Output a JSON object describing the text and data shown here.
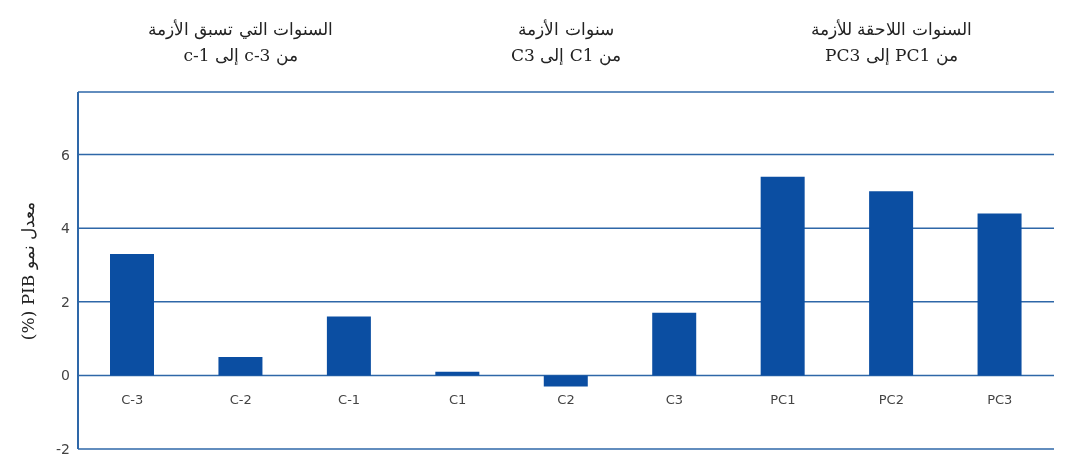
{
  "chart_data": {
    "type": "bar",
    "categories": [
      "C-3",
      "C-2",
      "C-1",
      "C1",
      "C2",
      "C3",
      "PC1",
      "PC2",
      "PC3"
    ],
    "values": [
      3.3,
      0.5,
      1.6,
      0.1,
      -0.3,
      1.7,
      5.4,
      5.0,
      4.4
    ],
    "color": "#0b4ea2",
    "ylabel": "معدل نمو PIB (%)",
    "ylim": [
      -2,
      7.7
    ],
    "yticks": [
      -2,
      0,
      2,
      4,
      6,
      {
        "value": 7.7,
        "label": null
      }
    ],
    "grid": "y",
    "annotations": [
      "السنوات التي تسبق الأزمة\nمن c-3 إلى c-1",
      "سنوات الأزمة\nمن C1 إلى C3",
      "السنوات اللاحقة للأزمة\nمن PC1 إلى PC3"
    ]
  }
}
